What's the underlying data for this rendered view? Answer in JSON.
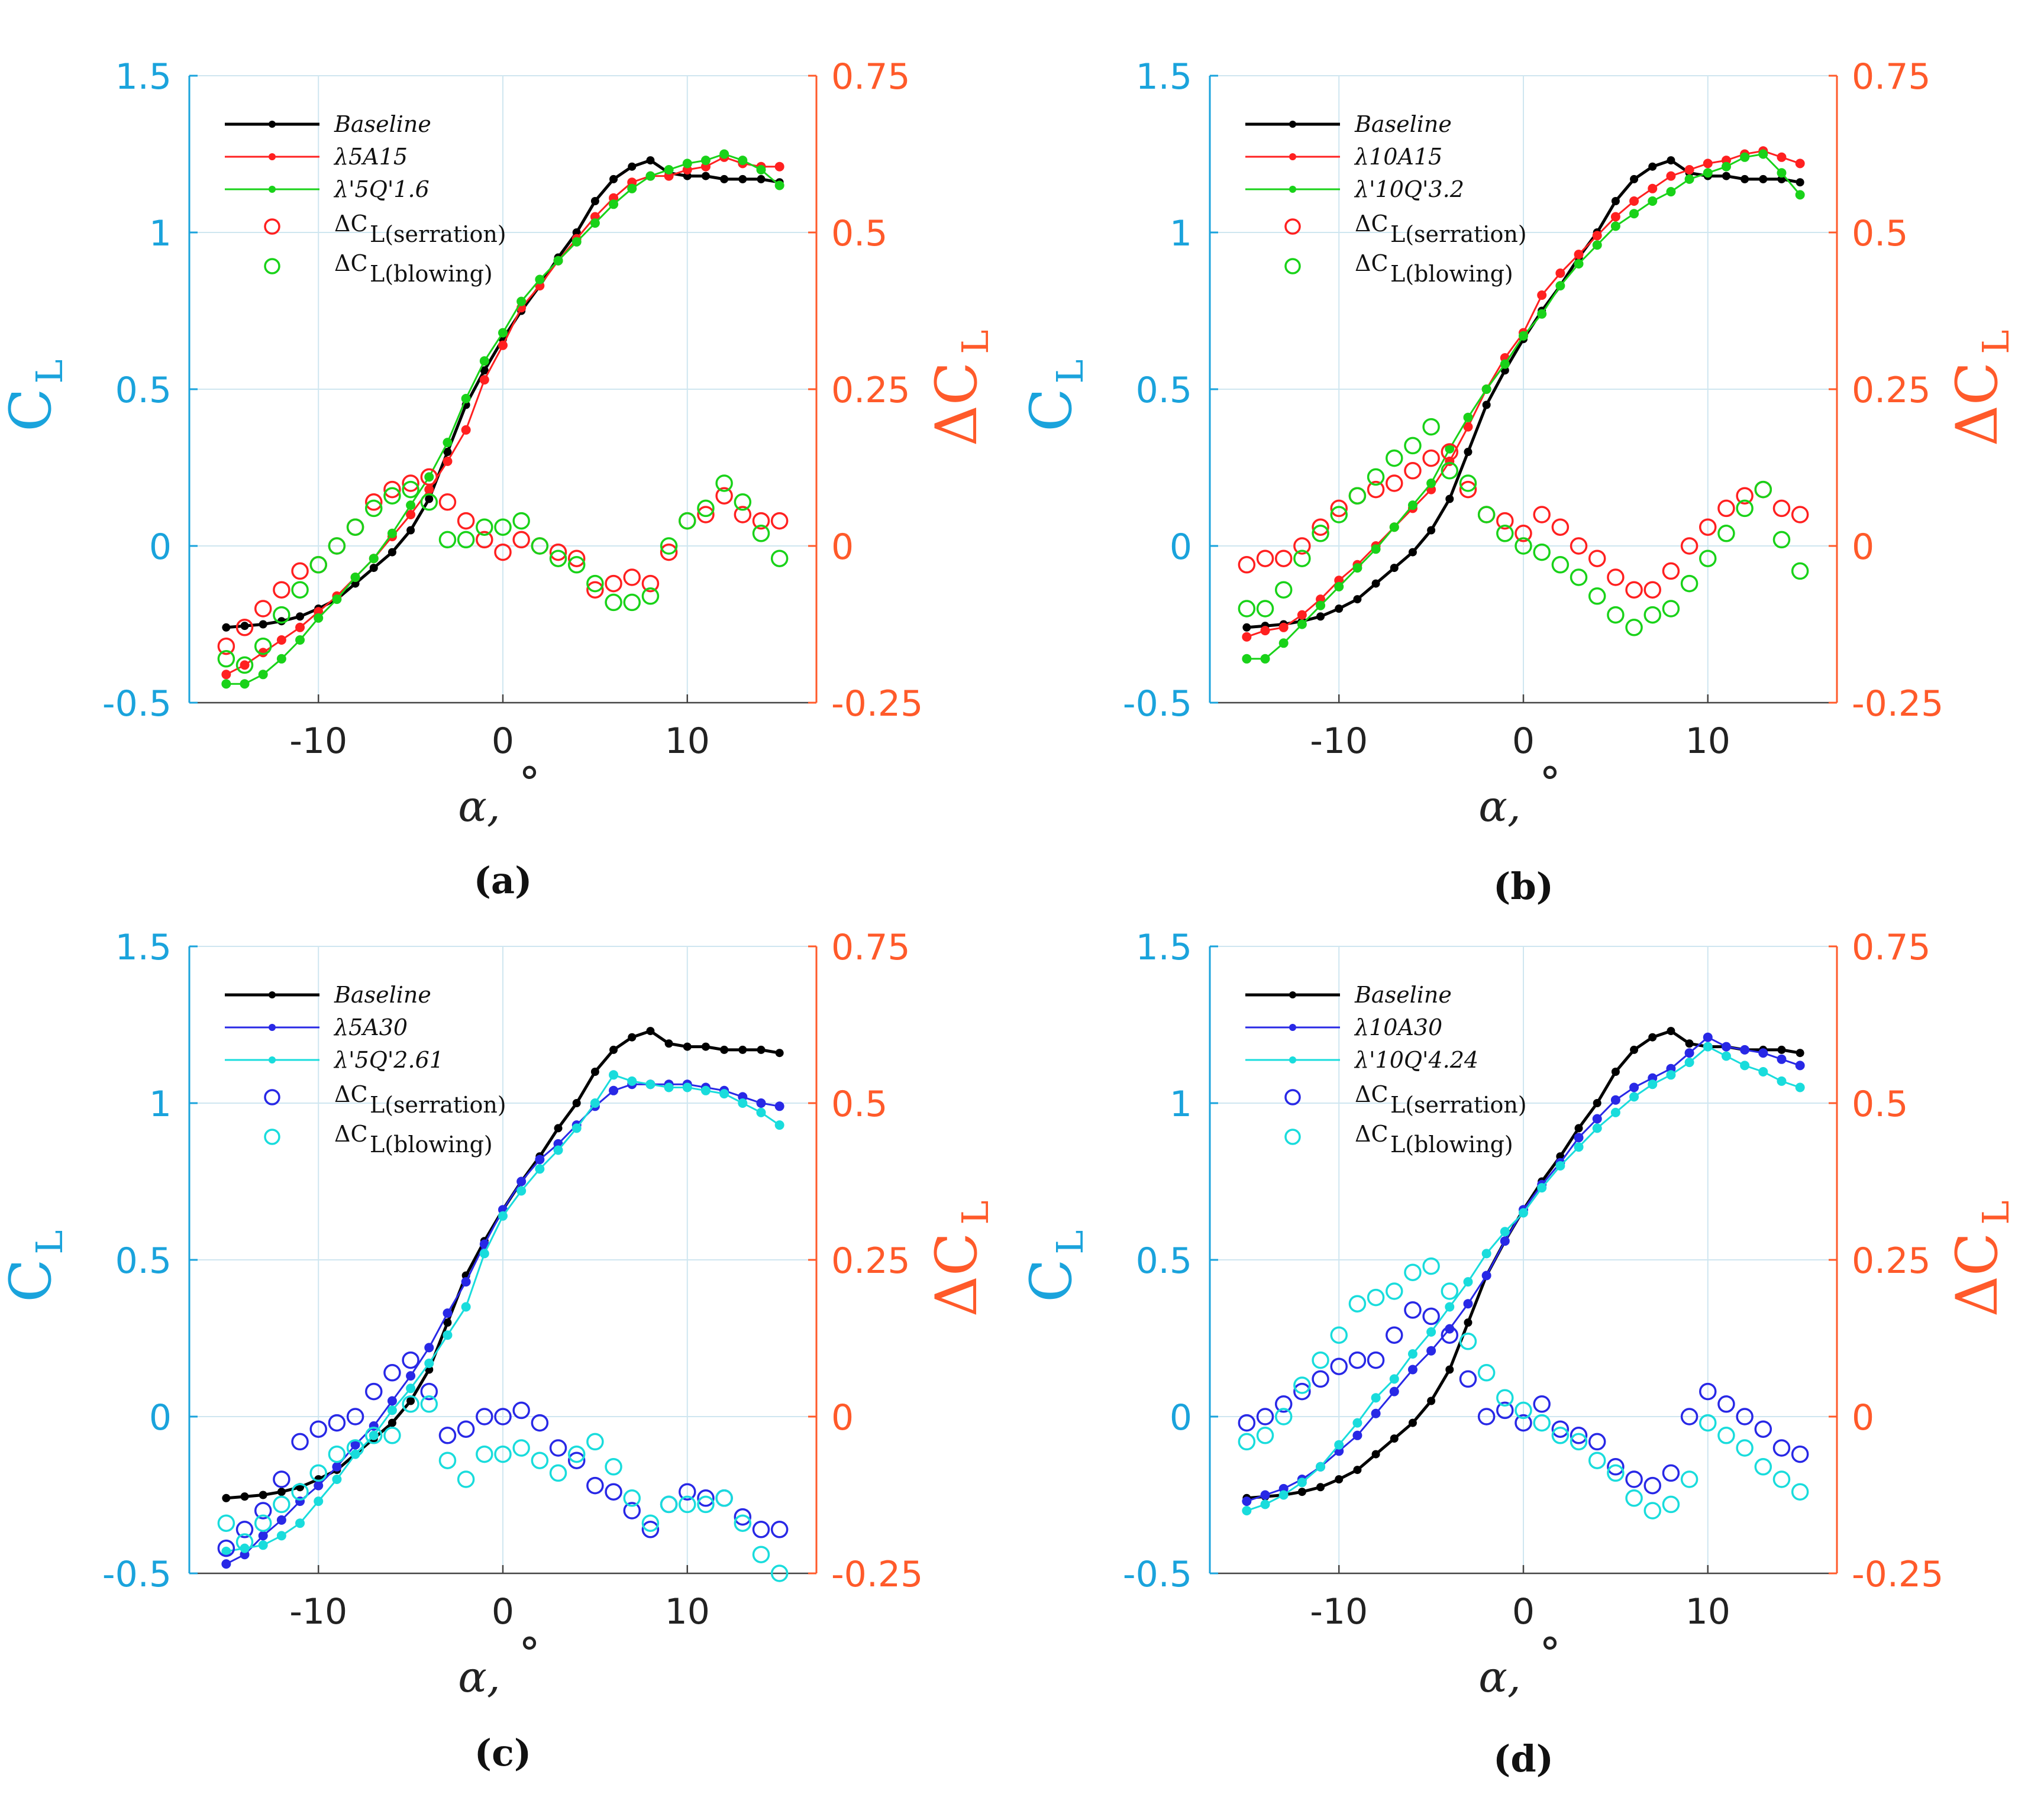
{
  "figure": {
    "xlabel": "α,",
    "xlabel_unit": "°",
    "ylabel_left": "C",
    "ylabel_left_sub": "L",
    "ylabel_right": "ΔC",
    "ylabel_right_sub": "L",
    "left_ticks": [
      "1.5",
      "1",
      "0.5",
      "0",
      "-0.5"
    ],
    "right_ticks": [
      "0.75",
      "0.5",
      "0.25",
      "0",
      "-0.25"
    ],
    "x_ticks": [
      "-10",
      "0",
      "10"
    ]
  },
  "chart_data": [
    {
      "type": "line",
      "caption": "(a)",
      "xlim": [
        -17,
        17
      ],
      "ylim_left": [
        -0.5,
        1.5
      ],
      "ylim_right": [
        -0.25,
        0.75
      ],
      "x": [
        -15,
        -14,
        -13,
        -12,
        -11,
        -10,
        -9,
        -8,
        -7,
        -6,
        -5,
        -4,
        -3,
        -2,
        -1,
        0,
        1,
        2,
        3,
        4,
        5,
        6,
        7,
        8,
        9,
        10,
        11,
        12,
        13,
        14,
        15
      ],
      "series": [
        {
          "name": "Baseline",
          "italic": true,
          "color": "#000000",
          "axis": "left",
          "kind": "line",
          "width": 5,
          "values": [
            -0.26,
            -0.255,
            -0.25,
            -0.24,
            -0.225,
            -0.2,
            -0.17,
            -0.12,
            -0.07,
            -0.02,
            0.05,
            0.15,
            0.3,
            0.45,
            0.56,
            0.66,
            0.75,
            0.83,
            0.92,
            1.0,
            1.1,
            1.17,
            1.21,
            1.23,
            1.19,
            1.18,
            1.18,
            1.17,
            1.17,
            1.17,
            1.16
          ]
        },
        {
          "name": "λ5A15",
          "italic": true,
          "color": "#ff2020",
          "axis": "left",
          "kind": "line",
          "width": 3,
          "values": [
            -0.41,
            -0.38,
            -0.34,
            -0.3,
            -0.26,
            -0.21,
            -0.16,
            -0.1,
            -0.04,
            0.03,
            0.1,
            0.18,
            0.27,
            0.37,
            0.53,
            0.64,
            0.76,
            0.83,
            0.91,
            0.98,
            1.05,
            1.11,
            1.16,
            1.18,
            1.18,
            1.2,
            1.21,
            1.24,
            1.22,
            1.21,
            1.21
          ]
        },
        {
          "name": "λ'5Q'1.6",
          "italic": true,
          "color": "#19d219",
          "axis": "left",
          "kind": "line",
          "width": 3,
          "values": [
            -0.44,
            -0.44,
            -0.41,
            -0.36,
            -0.3,
            -0.23,
            -0.17,
            -0.1,
            -0.04,
            0.04,
            0.13,
            0.22,
            0.33,
            0.47,
            0.59,
            0.68,
            0.78,
            0.85,
            0.91,
            0.97,
            1.03,
            1.09,
            1.14,
            1.18,
            1.2,
            1.22,
            1.23,
            1.25,
            1.23,
            1.2,
            1.15
          ]
        },
        {
          "name": "ΔC",
          "sub": "L(serration)",
          "color": "#ff2020",
          "axis": "right",
          "kind": "markers",
          "values": [
            -0.16,
            -0.13,
            -0.1,
            -0.07,
            -0.04,
            -0.03,
            0.0,
            0.03,
            0.07,
            0.09,
            0.1,
            0.11,
            0.07,
            0.04,
            0.01,
            -0.01,
            0.01,
            0.0,
            -0.01,
            -0.02,
            -0.07,
            -0.06,
            -0.05,
            -0.06,
            -0.01,
            0.04,
            0.05,
            0.08,
            0.05,
            0.04,
            0.04
          ]
        },
        {
          "name": "ΔC",
          "sub": "L(blowing)",
          "color": "#19d219",
          "axis": "right",
          "kind": "markers",
          "values": [
            -0.18,
            -0.19,
            -0.16,
            -0.11,
            -0.07,
            -0.03,
            0.0,
            0.03,
            0.06,
            0.08,
            0.09,
            0.07,
            0.01,
            0.01,
            0.03,
            0.03,
            0.04,
            0.0,
            -0.02,
            -0.03,
            -0.06,
            -0.09,
            -0.09,
            -0.08,
            0.0,
            0.04,
            0.06,
            0.1,
            0.07,
            0.02,
            -0.02
          ]
        }
      ]
    },
    {
      "type": "line",
      "caption": "(b)",
      "xlim": [
        -17,
        17
      ],
      "ylim_left": [
        -0.5,
        1.5
      ],
      "ylim_right": [
        -0.25,
        0.75
      ],
      "x": [
        -15,
        -14,
        -13,
        -12,
        -11,
        -10,
        -9,
        -8,
        -7,
        -6,
        -5,
        -4,
        -3,
        -2,
        -1,
        0,
        1,
        2,
        3,
        4,
        5,
        6,
        7,
        8,
        9,
        10,
        11,
        12,
        13,
        14,
        15
      ],
      "series": [
        {
          "name": "Baseline",
          "italic": true,
          "color": "#000000",
          "axis": "left",
          "kind": "line",
          "width": 5,
          "values": [
            -0.26,
            -0.255,
            -0.25,
            -0.24,
            -0.225,
            -0.2,
            -0.17,
            -0.12,
            -0.07,
            -0.02,
            0.05,
            0.15,
            0.3,
            0.45,
            0.56,
            0.66,
            0.75,
            0.83,
            0.92,
            1.0,
            1.1,
            1.17,
            1.21,
            1.23,
            1.19,
            1.18,
            1.18,
            1.17,
            1.17,
            1.17,
            1.16
          ]
        },
        {
          "name": "λ10A15",
          "italic": true,
          "color": "#ff2020",
          "axis": "left",
          "kind": "line",
          "width": 3,
          "values": [
            -0.29,
            -0.27,
            -0.26,
            -0.22,
            -0.17,
            -0.11,
            -0.06,
            0.0,
            0.06,
            0.12,
            0.18,
            0.27,
            0.38,
            0.5,
            0.6,
            0.68,
            0.8,
            0.87,
            0.93,
            0.99,
            1.05,
            1.1,
            1.14,
            1.18,
            1.2,
            1.22,
            1.23,
            1.25,
            1.26,
            1.24,
            1.22
          ]
        },
        {
          "name": "λ'10Q'3.2",
          "italic": true,
          "color": "#19d219",
          "axis": "left",
          "kind": "line",
          "width": 3,
          "values": [
            -0.36,
            -0.36,
            -0.31,
            -0.25,
            -0.19,
            -0.13,
            -0.07,
            -0.01,
            0.06,
            0.13,
            0.2,
            0.31,
            0.41,
            0.5,
            0.58,
            0.67,
            0.74,
            0.83,
            0.9,
            0.96,
            1.02,
            1.06,
            1.1,
            1.13,
            1.17,
            1.19,
            1.21,
            1.24,
            1.25,
            1.19,
            1.12
          ]
        },
        {
          "name": "ΔC",
          "sub": "L(serration)",
          "color": "#ff2020",
          "axis": "right",
          "kind": "markers",
          "values": [
            -0.03,
            -0.02,
            -0.02,
            0.0,
            0.03,
            0.06,
            0.08,
            0.09,
            0.1,
            0.12,
            0.14,
            0.15,
            0.09,
            0.05,
            0.04,
            0.02,
            0.05,
            0.03,
            0.0,
            -0.02,
            -0.05,
            -0.07,
            -0.07,
            -0.04,
            0.0,
            0.03,
            0.06,
            0.08,
            0.09,
            0.06,
            0.05
          ]
        },
        {
          "name": "ΔC",
          "sub": "L(blowing)",
          "color": "#19d219",
          "axis": "right",
          "kind": "markers",
          "values": [
            -0.1,
            -0.1,
            -0.07,
            -0.02,
            0.02,
            0.05,
            0.08,
            0.11,
            0.14,
            0.16,
            0.19,
            0.12,
            0.1,
            0.05,
            0.02,
            0.0,
            -0.01,
            -0.03,
            -0.05,
            -0.08,
            -0.11,
            -0.13,
            -0.11,
            -0.1,
            -0.06,
            -0.02,
            0.02,
            0.06,
            0.09,
            0.01,
            -0.04
          ]
        }
      ]
    },
    {
      "type": "line",
      "caption": "(c)",
      "xlim": [
        -17,
        17
      ],
      "ylim_left": [
        -0.5,
        1.5
      ],
      "ylim_right": [
        -0.25,
        0.75
      ],
      "x": [
        -15,
        -14,
        -13,
        -12,
        -11,
        -10,
        -9,
        -8,
        -7,
        -6,
        -5,
        -4,
        -3,
        -2,
        -1,
        0,
        1,
        2,
        3,
        4,
        5,
        6,
        7,
        8,
        9,
        10,
        11,
        12,
        13,
        14,
        15
      ],
      "series": [
        {
          "name": "Baseline",
          "italic": true,
          "color": "#000000",
          "axis": "left",
          "kind": "line",
          "width": 5,
          "values": [
            -0.26,
            -0.255,
            -0.25,
            -0.24,
            -0.225,
            -0.2,
            -0.17,
            -0.12,
            -0.07,
            -0.02,
            0.05,
            0.15,
            0.3,
            0.45,
            0.56,
            0.66,
            0.75,
            0.83,
            0.92,
            1.0,
            1.1,
            1.17,
            1.21,
            1.23,
            1.19,
            1.18,
            1.18,
            1.17,
            1.17,
            1.17,
            1.16
          ]
        },
        {
          "name": "λ5A30",
          "italic": true,
          "color": "#2828e6",
          "axis": "left",
          "kind": "line",
          "width": 3,
          "values": [
            -0.47,
            -0.44,
            -0.38,
            -0.33,
            -0.27,
            -0.22,
            -0.16,
            -0.09,
            -0.03,
            0.05,
            0.13,
            0.22,
            0.33,
            0.43,
            0.55,
            0.66,
            0.75,
            0.82,
            0.87,
            0.93,
            0.99,
            1.04,
            1.06,
            1.06,
            1.06,
            1.06,
            1.05,
            1.04,
            1.02,
            1.0,
            0.99
          ]
        },
        {
          "name": "λ'5Q'2.61",
          "italic": true,
          "color": "#19dcdc",
          "axis": "left",
          "kind": "line",
          "width": 3,
          "values": [
            -0.43,
            -0.42,
            -0.41,
            -0.38,
            -0.34,
            -0.27,
            -0.2,
            -0.12,
            -0.06,
            0.02,
            0.09,
            0.17,
            0.26,
            0.35,
            0.52,
            0.64,
            0.72,
            0.79,
            0.85,
            0.92,
            1.0,
            1.09,
            1.07,
            1.06,
            1.05,
            1.05,
            1.04,
            1.03,
            1.0,
            0.97,
            0.93
          ]
        },
        {
          "name": "ΔC",
          "sub": "L(serration)",
          "color": "#2828e6",
          "axis": "right",
          "kind": "markers",
          "values": [
            -0.21,
            -0.18,
            -0.15,
            -0.1,
            -0.04,
            -0.02,
            -0.01,
            0.0,
            0.04,
            0.07,
            0.09,
            0.04,
            -0.03,
            -0.02,
            0.0,
            0.0,
            0.01,
            -0.01,
            -0.05,
            -0.07,
            -0.11,
            -0.12,
            -0.15,
            -0.18,
            -0.14,
            -0.12,
            -0.13,
            -0.13,
            -0.16,
            -0.18,
            -0.18
          ]
        },
        {
          "name": "ΔC",
          "sub": "L(blowing)",
          "color": "#19dcdc",
          "axis": "right",
          "kind": "markers",
          "values": [
            -0.17,
            -0.2,
            -0.17,
            -0.14,
            -0.12,
            -0.09,
            -0.06,
            -0.05,
            -0.03,
            -0.03,
            0.02,
            0.02,
            -0.07,
            -0.1,
            -0.06,
            -0.06,
            -0.05,
            -0.07,
            -0.09,
            -0.06,
            -0.04,
            -0.08,
            -0.13,
            -0.17,
            -0.14,
            -0.14,
            -0.14,
            -0.13,
            -0.17,
            -0.22,
            -0.25
          ]
        }
      ]
    },
    {
      "type": "line",
      "caption": "(d)",
      "xlim": [
        -17,
        17
      ],
      "ylim_left": [
        -0.5,
        1.5
      ],
      "ylim_right": [
        -0.25,
        0.75
      ],
      "x": [
        -15,
        -14,
        -13,
        -12,
        -11,
        -10,
        -9,
        -8,
        -7,
        -6,
        -5,
        -4,
        -3,
        -2,
        -1,
        0,
        1,
        2,
        3,
        4,
        5,
        6,
        7,
        8,
        9,
        10,
        11,
        12,
        13,
        14,
        15
      ],
      "series": [
        {
          "name": "Baseline",
          "italic": true,
          "color": "#000000",
          "axis": "left",
          "kind": "line",
          "width": 5,
          "values": [
            -0.26,
            -0.255,
            -0.25,
            -0.24,
            -0.225,
            -0.2,
            -0.17,
            -0.12,
            -0.07,
            -0.02,
            0.05,
            0.15,
            0.3,
            0.45,
            0.56,
            0.66,
            0.75,
            0.83,
            0.92,
            1.0,
            1.1,
            1.17,
            1.21,
            1.23,
            1.19,
            1.18,
            1.18,
            1.17,
            1.17,
            1.17,
            1.16
          ]
        },
        {
          "name": "λ10A30",
          "italic": true,
          "color": "#2828e6",
          "axis": "left",
          "kind": "line",
          "width": 3,
          "values": [
            -0.27,
            -0.25,
            -0.23,
            -0.2,
            -0.16,
            -0.11,
            -0.06,
            0.01,
            0.08,
            0.15,
            0.21,
            0.28,
            0.36,
            0.45,
            0.56,
            0.66,
            0.74,
            0.81,
            0.89,
            0.95,
            1.01,
            1.05,
            1.08,
            1.11,
            1.16,
            1.21,
            1.18,
            1.17,
            1.16,
            1.14,
            1.12
          ]
        },
        {
          "name": "λ'10Q'4.24",
          "italic": true,
          "color": "#19dcdc",
          "axis": "left",
          "kind": "line",
          "width": 3,
          "values": [
            -0.3,
            -0.28,
            -0.25,
            -0.21,
            -0.16,
            -0.09,
            -0.02,
            0.06,
            0.12,
            0.2,
            0.27,
            0.35,
            0.43,
            0.52,
            0.59,
            0.65,
            0.73,
            0.8,
            0.86,
            0.92,
            0.97,
            1.02,
            1.06,
            1.09,
            1.13,
            1.18,
            1.15,
            1.12,
            1.1,
            1.07,
            1.05
          ]
        },
        {
          "name": "ΔC",
          "sub": "L(serration)",
          "color": "#2828e6",
          "axis": "right",
          "kind": "markers",
          "values": [
            -0.01,
            0.0,
            0.02,
            0.04,
            0.06,
            0.08,
            0.09,
            0.09,
            0.13,
            0.17,
            0.16,
            0.13,
            0.06,
            0.0,
            0.01,
            -0.01,
            0.02,
            -0.02,
            -0.03,
            -0.04,
            -0.08,
            -0.1,
            -0.11,
            -0.09,
            0.0,
            0.04,
            0.02,
            0.0,
            -0.02,
            -0.05,
            -0.06
          ]
        },
        {
          "name": "ΔC",
          "sub": "L(blowing)",
          "color": "#19dcdc",
          "axis": "right",
          "kind": "markers",
          "values": [
            -0.04,
            -0.03,
            0.0,
            0.05,
            0.09,
            0.13,
            0.18,
            0.19,
            0.2,
            0.23,
            0.24,
            0.2,
            0.12,
            0.07,
            0.03,
            0.01,
            -0.01,
            -0.03,
            -0.04,
            -0.07,
            -0.09,
            -0.13,
            -0.15,
            -0.14,
            -0.1,
            -0.01,
            -0.03,
            -0.05,
            -0.08,
            -0.1,
            -0.12
          ]
        }
      ]
    }
  ]
}
